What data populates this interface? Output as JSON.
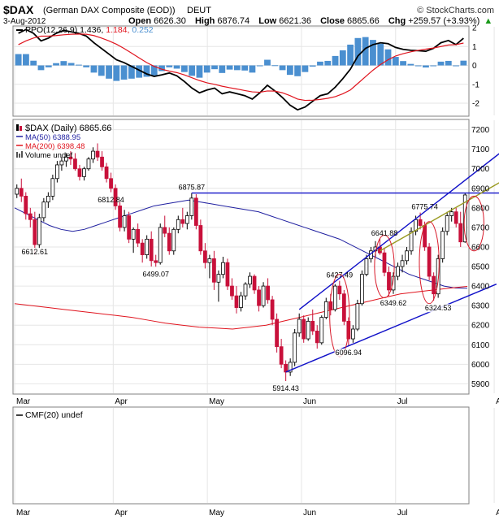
{
  "header": {
    "symbol": "$DAX",
    "name": "(German DAX Composite (EOD))",
    "exchange": "DEUT",
    "watermark": "© StockCharts.com",
    "date": "3-Aug-2012",
    "ohlc": {
      "open_label": "Open",
      "open": "6626.30",
      "high_label": "High",
      "high": "6876.74",
      "low_label": "Low",
      "low": "6621.36",
      "close_label": "Close",
      "close": "6865.66",
      "chg_label": "Chg",
      "chg": "+259.57 (+3.93%)",
      "chg_marker": "▲"
    }
  },
  "chart_data": [
    {
      "type": "line",
      "panel": "ppo",
      "legend": {
        "name": "PPO(12,26,9)",
        "v1": "1.436,",
        "v2": "1.184,",
        "v3": "0.252"
      },
      "ylim": [
        -2.6,
        2.0
      ],
      "y_ticks": [
        "2",
        "1",
        "0",
        "-1",
        "-2"
      ],
      "series": [
        {
          "name": "PPO(12,26,9)",
          "color": "#000000",
          "values": [
            1.7,
            1.9,
            1.7,
            1.3,
            1.45,
            1.7,
            1.85,
            1.78,
            1.7,
            1.55,
            1.2,
            0.9,
            0.6,
            0.3,
            0.15,
            -0.05,
            -0.25,
            -0.45,
            -0.58,
            -0.5,
            -0.4,
            -0.55,
            -0.85,
            -1.2,
            -1.45,
            -1.3,
            -1.2,
            -1.5,
            -1.4,
            -1.5,
            -1.6,
            -1.78,
            -1.45,
            -1.05,
            -1.35,
            -1.7,
            -2.1,
            -2.35,
            -2.2,
            -1.9,
            -1.6,
            -1.5,
            -1.15,
            -0.7,
            -0.2,
            0.5,
            0.9,
            1.1,
            1.2,
            1.15,
            0.95,
            0.85,
            0.8,
            0.78,
            0.75,
            0.9,
            1.2,
            1.32,
            1.1,
            1.436
          ]
        },
        {
          "name": "Signal",
          "color": "#e0141e",
          "values": [
            1.1,
            1.3,
            1.45,
            1.55,
            1.55,
            1.58,
            1.62,
            1.65,
            1.66,
            1.65,
            1.58,
            1.45,
            1.3,
            1.12,
            0.9,
            0.65,
            0.4,
            0.15,
            -0.05,
            -0.2,
            -0.3,
            -0.38,
            -0.5,
            -0.65,
            -0.8,
            -0.92,
            -1.0,
            -1.1,
            -1.18,
            -1.25,
            -1.33,
            -1.4,
            -1.42,
            -1.35,
            -1.36,
            -1.45,
            -1.6,
            -1.78,
            -1.85,
            -1.84,
            -1.8,
            -1.74,
            -1.65,
            -1.5,
            -1.3,
            -0.95,
            -0.6,
            -0.25,
            0.05,
            0.3,
            0.5,
            0.62,
            0.72,
            0.8,
            0.86,
            0.92,
            1.0,
            1.08,
            1.1,
            1.184
          ]
        }
      ],
      "histogram_color": "#4a8fd0"
    },
    {
      "type": "candlestick",
      "panel": "price",
      "legend": [
        {
          "label": "$DAX (Daily) 6865.66",
          "color": "#000000"
        },
        {
          "label": "MA(50) 6388.95",
          "color": "#1f1fa0"
        },
        {
          "label": "MA(200) 6398.48",
          "color": "#e0141e"
        },
        {
          "label": "Volume undef",
          "color": "#000000"
        }
      ],
      "ylim": [
        5860,
        7240
      ],
      "y_ticks": [
        7200,
        7100,
        7000,
        6900,
        6800,
        6700,
        6600,
        6500,
        6400,
        6300,
        6200,
        6100,
        6000,
        5900
      ],
      "x_labels": [
        {
          "label": "Mar",
          "i": 0
        },
        {
          "label": "Apr",
          "i": 22
        },
        {
          "label": "May",
          "i": 43
        },
        {
          "label": "Jun",
          "i": 64
        },
        {
          "label": "Jul",
          "i": 85
        },
        {
          "label": "Aug",
          "i": 107
        }
      ],
      "candles": [
        [
          6870,
          6920,
          6850,
          6900
        ],
        [
          6900,
          6950,
          6830,
          6860
        ],
        [
          6860,
          6880,
          6740,
          6770
        ],
        [
          6770,
          6800,
          6700,
          6740
        ],
        [
          6740,
          6780,
          6560,
          6612
        ],
        [
          6612,
          6770,
          6590,
          6750
        ],
        [
          6750,
          6850,
          6730,
          6830
        ],
        [
          6830,
          6880,
          6800,
          6860
        ],
        [
          6860,
          6970,
          6840,
          6950
        ],
        [
          6950,
          7040,
          6930,
          7020
        ],
        [
          7020,
          7060,
          6990,
          7040
        ],
        [
          7040,
          7080,
          7010,
          7060
        ],
        [
          7060,
          7090,
          7020,
          7050
        ],
        [
          7050,
          7080,
          6990,
          7000
        ],
        [
          7000,
          7020,
          6940,
          6960
        ],
        [
          6960,
          7010,
          6940,
          7000
        ],
        [
          7000,
          7060,
          6990,
          7050
        ],
        [
          7050,
          7110,
          7030,
          7090
        ],
        [
          7090,
          7130,
          7040,
          7060
        ],
        [
          7060,
          7090,
          6990,
          7010
        ],
        [
          7010,
          7030,
          6930,
          6950
        ],
        [
          6950,
          6980,
          6880,
          6900
        ],
        [
          6900,
          6920,
          6790,
          6810
        ],
        [
          6810,
          6830,
          6680,
          6700
        ],
        [
          6700,
          6790,
          6680,
          6760
        ],
        [
          6760,
          6780,
          6620,
          6640
        ],
        [
          6640,
          6700,
          6570,
          6690
        ],
        [
          6690,
          6720,
          6600,
          6620
        ],
        [
          6620,
          6640,
          6520,
          6560
        ],
        [
          6560,
          6660,
          6540,
          6640
        ],
        [
          6640,
          6680,
          6500,
          6530
        ],
        [
          6530,
          6560,
          6499,
          6520
        ],
        [
          6520,
          6720,
          6510,
          6700
        ],
        [
          6700,
          6760,
          6650,
          6670
        ],
        [
          6670,
          6700,
          6560,
          6580
        ],
        [
          6580,
          6700,
          6560,
          6690
        ],
        [
          6690,
          6760,
          6670,
          6740
        ],
        [
          6740,
          6800,
          6700,
          6720
        ],
        [
          6720,
          6780,
          6690,
          6760
        ],
        [
          6760,
          6876,
          6740,
          6850
        ],
        [
          6850,
          6870,
          6690,
          6710
        ],
        [
          6710,
          6740,
          6560,
          6580
        ],
        [
          6580,
          6620,
          6490,
          6520
        ],
        [
          6520,
          6560,
          6440,
          6540
        ],
        [
          6540,
          6580,
          6380,
          6420
        ],
        [
          6420,
          6480,
          6320,
          6460
        ],
        [
          6460,
          6550,
          6440,
          6520
        ],
        [
          6520,
          6540,
          6380,
          6400
        ],
        [
          6400,
          6440,
          6330,
          6350
        ],
        [
          6350,
          6400,
          6260,
          6290
        ],
        [
          6290,
          6370,
          6270,
          6350
        ],
        [
          6350,
          6420,
          6330,
          6410
        ],
        [
          6410,
          6470,
          6390,
          6450
        ],
        [
          6450,
          6460,
          6360,
          6380
        ],
        [
          6380,
          6400,
          6270,
          6300
        ],
        [
          6300,
          6420,
          6290,
          6400
        ],
        [
          6400,
          6440,
          6310,
          6330
        ],
        [
          6330,
          6350,
          6200,
          6230
        ],
        [
          6230,
          6260,
          6060,
          6090
        ],
        [
          6090,
          6130,
          5980,
          6000
        ],
        [
          6000,
          6020,
          5914,
          5960
        ],
        [
          5960,
          6030,
          5940,
          6010
        ],
        [
          6010,
          6180,
          5990,
          6160
        ],
        [
          6160,
          6260,
          6140,
          6230
        ],
        [
          6230,
          6250,
          6110,
          6130
        ],
        [
          6130,
          6240,
          6120,
          6220
        ],
        [
          6220,
          6280,
          6150,
          6170
        ],
        [
          6170,
          6200,
          6080,
          6110
        ],
        [
          6110,
          6250,
          6100,
          6240
        ],
        [
          6240,
          6340,
          6230,
          6320
        ],
        [
          6320,
          6360,
          6250,
          6280
        ],
        [
          6280,
          6410,
          6270,
          6400
        ],
        [
          6400,
          6427,
          6330,
          6360
        ],
        [
          6360,
          6380,
          6200,
          6220
        ],
        [
          6220,
          6240,
          6097,
          6130
        ],
        [
          6130,
          6200,
          6110,
          6180
        ],
        [
          6180,
          6330,
          6170,
          6310
        ],
        [
          6310,
          6480,
          6300,
          6460
        ],
        [
          6460,
          6560,
          6450,
          6540
        ],
        [
          6540,
          6600,
          6520,
          6580
        ],
        [
          6580,
          6630,
          6550,
          6600
        ],
        [
          6600,
          6642,
          6560,
          6570
        ],
        [
          6570,
          6590,
          6450,
          6470
        ],
        [
          6470,
          6500,
          6350,
          6380
        ],
        [
          6380,
          6470,
          6360,
          6450
        ],
        [
          6450,
          6520,
          6430,
          6500
        ],
        [
          6500,
          6560,
          6470,
          6530
        ],
        [
          6530,
          6600,
          6510,
          6580
        ],
        [
          6580,
          6700,
          6560,
          6680
        ],
        [
          6680,
          6760,
          6660,
          6740
        ],
        [
          6740,
          6776,
          6690,
          6710
        ],
        [
          6710,
          6730,
          6580,
          6600
        ],
        [
          6600,
          6620,
          6430,
          6450
        ],
        [
          6450,
          6470,
          6325,
          6360
        ],
        [
          6360,
          6560,
          6340,
          6540
        ],
        [
          6540,
          6700,
          6520,
          6680
        ],
        [
          6680,
          6780,
          6660,
          6760
        ],
        [
          6760,
          6800,
          6730,
          6780
        ],
        [
          6780,
          6800,
          6700,
          6720
        ],
        [
          6720,
          6780,
          6600,
          6626
        ],
        [
          6626,
          6877,
          6621,
          6866
        ]
      ],
      "ma50": [
        6800,
        6770,
        6740,
        6710,
        6690,
        6680,
        6690,
        6710,
        6730,
        6750,
        6770,
        6790,
        6810,
        6820,
        6830,
        6840,
        6830,
        6820,
        6810,
        6800,
        6790,
        6780,
        6760,
        6740,
        6720,
        6700,
        6680,
        6660,
        6640,
        6610,
        6580,
        6550,
        6520,
        6490,
        6460,
        6440,
        6420,
        6400,
        6390,
        6388.95
      ],
      "ma200": [
        6310,
        6300,
        6290,
        6280,
        6270,
        6260,
        6250,
        6240,
        6225,
        6210,
        6200,
        6190,
        6185,
        6180,
        6190,
        6200,
        6220,
        6240,
        6260,
        6280,
        6300,
        6320,
        6340,
        6360,
        6370,
        6380,
        6390,
        6398.48
      ],
      "annotations": [
        {
          "text": "6612.61",
          "i": 4,
          "v": 6612.61
        },
        {
          "text": "6812.84",
          "i": 21,
          "v": 6812.84
        },
        {
          "text": "6875.87",
          "i": 39,
          "v": 6875.87
        },
        {
          "text": "6499.07",
          "i": 31,
          "v": 6499.07
        },
        {
          "text": "6427.49",
          "i": 72,
          "v": 6427.49
        },
        {
          "text": "6096.94",
          "i": 74,
          "v": 6096.94
        },
        {
          "text": "6641.88",
          "i": 82,
          "v": 6641.88
        },
        {
          "text": "6349.62",
          "i": 84,
          "v": 6349.62
        },
        {
          "text": "6775.74",
          "i": 91,
          "v": 6775.74
        },
        {
          "text": "6324.53",
          "i": 94,
          "v": 6324.53
        },
        {
          "text": "5914.43",
          "i": 60,
          "v": 5914.43
        }
      ],
      "trendlines": [
        {
          "color": "#1010c8",
          "from": [
            39,
            6876
          ],
          "to": [
            109,
            6876
          ]
        },
        {
          "color": "#1010c8",
          "from": [
            60,
            5960
          ],
          "to": [
            107,
            6410
          ]
        },
        {
          "color": "#1010c8",
          "from": [
            63,
            6280
          ],
          "to": [
            110,
            7120
          ]
        },
        {
          "color": "#9a9a20",
          "from": [
            81,
            6580
          ],
          "to": [
            110,
            6960
          ]
        }
      ],
      "ellipses": [
        {
          "i": 72,
          "v": 6250,
          "vr": 210
        },
        {
          "i": 82,
          "v": 6500,
          "vr": 160
        },
        {
          "i": 92,
          "v": 6520,
          "vr": 210
        },
        {
          "i": 102,
          "v": 6720,
          "vr": 140
        }
      ]
    },
    {
      "type": "line",
      "panel": "cmf",
      "legend": {
        "label": "CMF(20) undef"
      },
      "x_labels": [
        "Mar",
        "Apr",
        "May",
        "Jun",
        "Jul",
        "Aug"
      ]
    }
  ]
}
